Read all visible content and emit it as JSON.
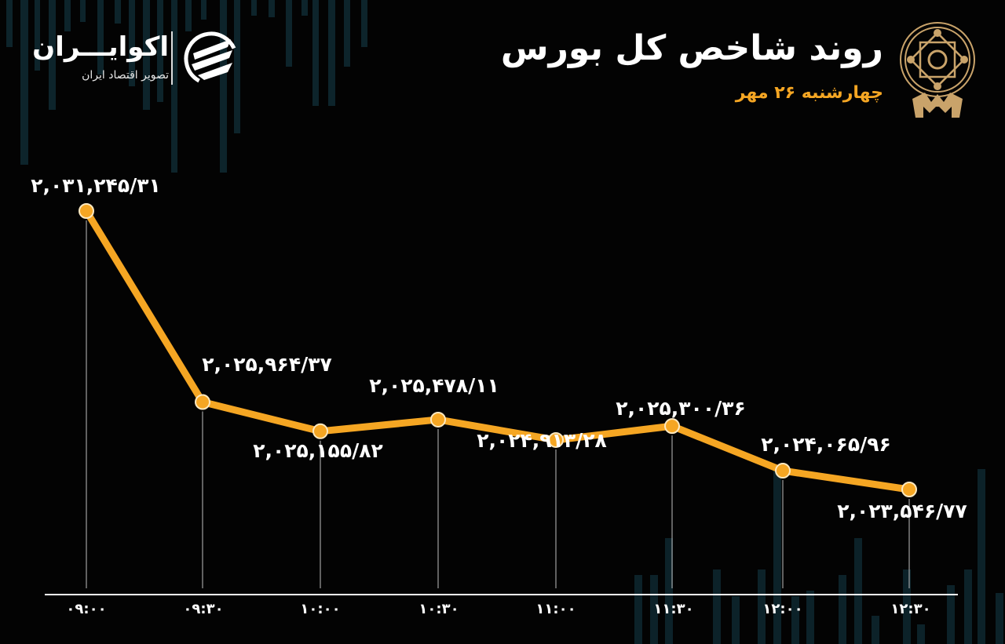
{
  "header": {
    "title": "روند شاخص کل بورس",
    "subtitle": "چهارشنبه ۲۶ مهر"
  },
  "brand": {
    "name": "اکوایـــران",
    "tagline": "تصویر اقتصاد ایران",
    "logo_icon": "ecoiran-swirl-logo-icon",
    "emblem_icon": "tehran-stock-exchange-emblem-icon"
  },
  "colors": {
    "background": "#030303",
    "line": "#f5a623",
    "subtitle": "#f5a623",
    "text": "#ffffff",
    "axis": "#ffffff",
    "bg_bars": "#0f2a33",
    "emblem": "#c9a36a"
  },
  "chart_data": {
    "type": "line",
    "title": "روند شاخص کل بورس",
    "subtitle": "چهارشنبه ۲۶ مهر",
    "xlabel": "",
    "ylabel": "",
    "grid": false,
    "legend": null,
    "x": [
      "09:00",
      "09:30",
      "10:00",
      "10:30",
      "11:00",
      "11:30",
      "12:00",
      "12:30"
    ],
    "x_labels_display": [
      "۰۹:۰۰",
      "۰۹:۳۰",
      "۱۰:۰۰",
      "۱۰:۳۰",
      "۱۱:۰۰",
      "۱۱:۳۰",
      "۱۲:۰۰",
      "۱۲:۳۰"
    ],
    "values": [
      2031245.31,
      2025964.37,
      2025155.82,
      2025478.11,
      2024913.28,
      2025300.36,
      2024065.96,
      2023546.77
    ],
    "value_labels_display": [
      "۲,۰۳۱,۲۴۵/۳۱",
      "۲,۰۲۵,۹۶۴/۳۷",
      "۲,۰۲۵,۱۵۵/۸۲",
      "۲,۰۲۵,۴۷۸/۱۱",
      "۲,۰۲۴,۹۱۳/۲۸",
      "۲,۰۲۵,۳۰۰/۳۶",
      "۲,۰۲۴,۰۶۵/۹۶",
      "۲,۰۲۳,۵۴۶/۷۷"
    ],
    "label_positions": [
      "above",
      "above",
      "below",
      "above",
      "below",
      "above",
      "above",
      "below"
    ]
  }
}
